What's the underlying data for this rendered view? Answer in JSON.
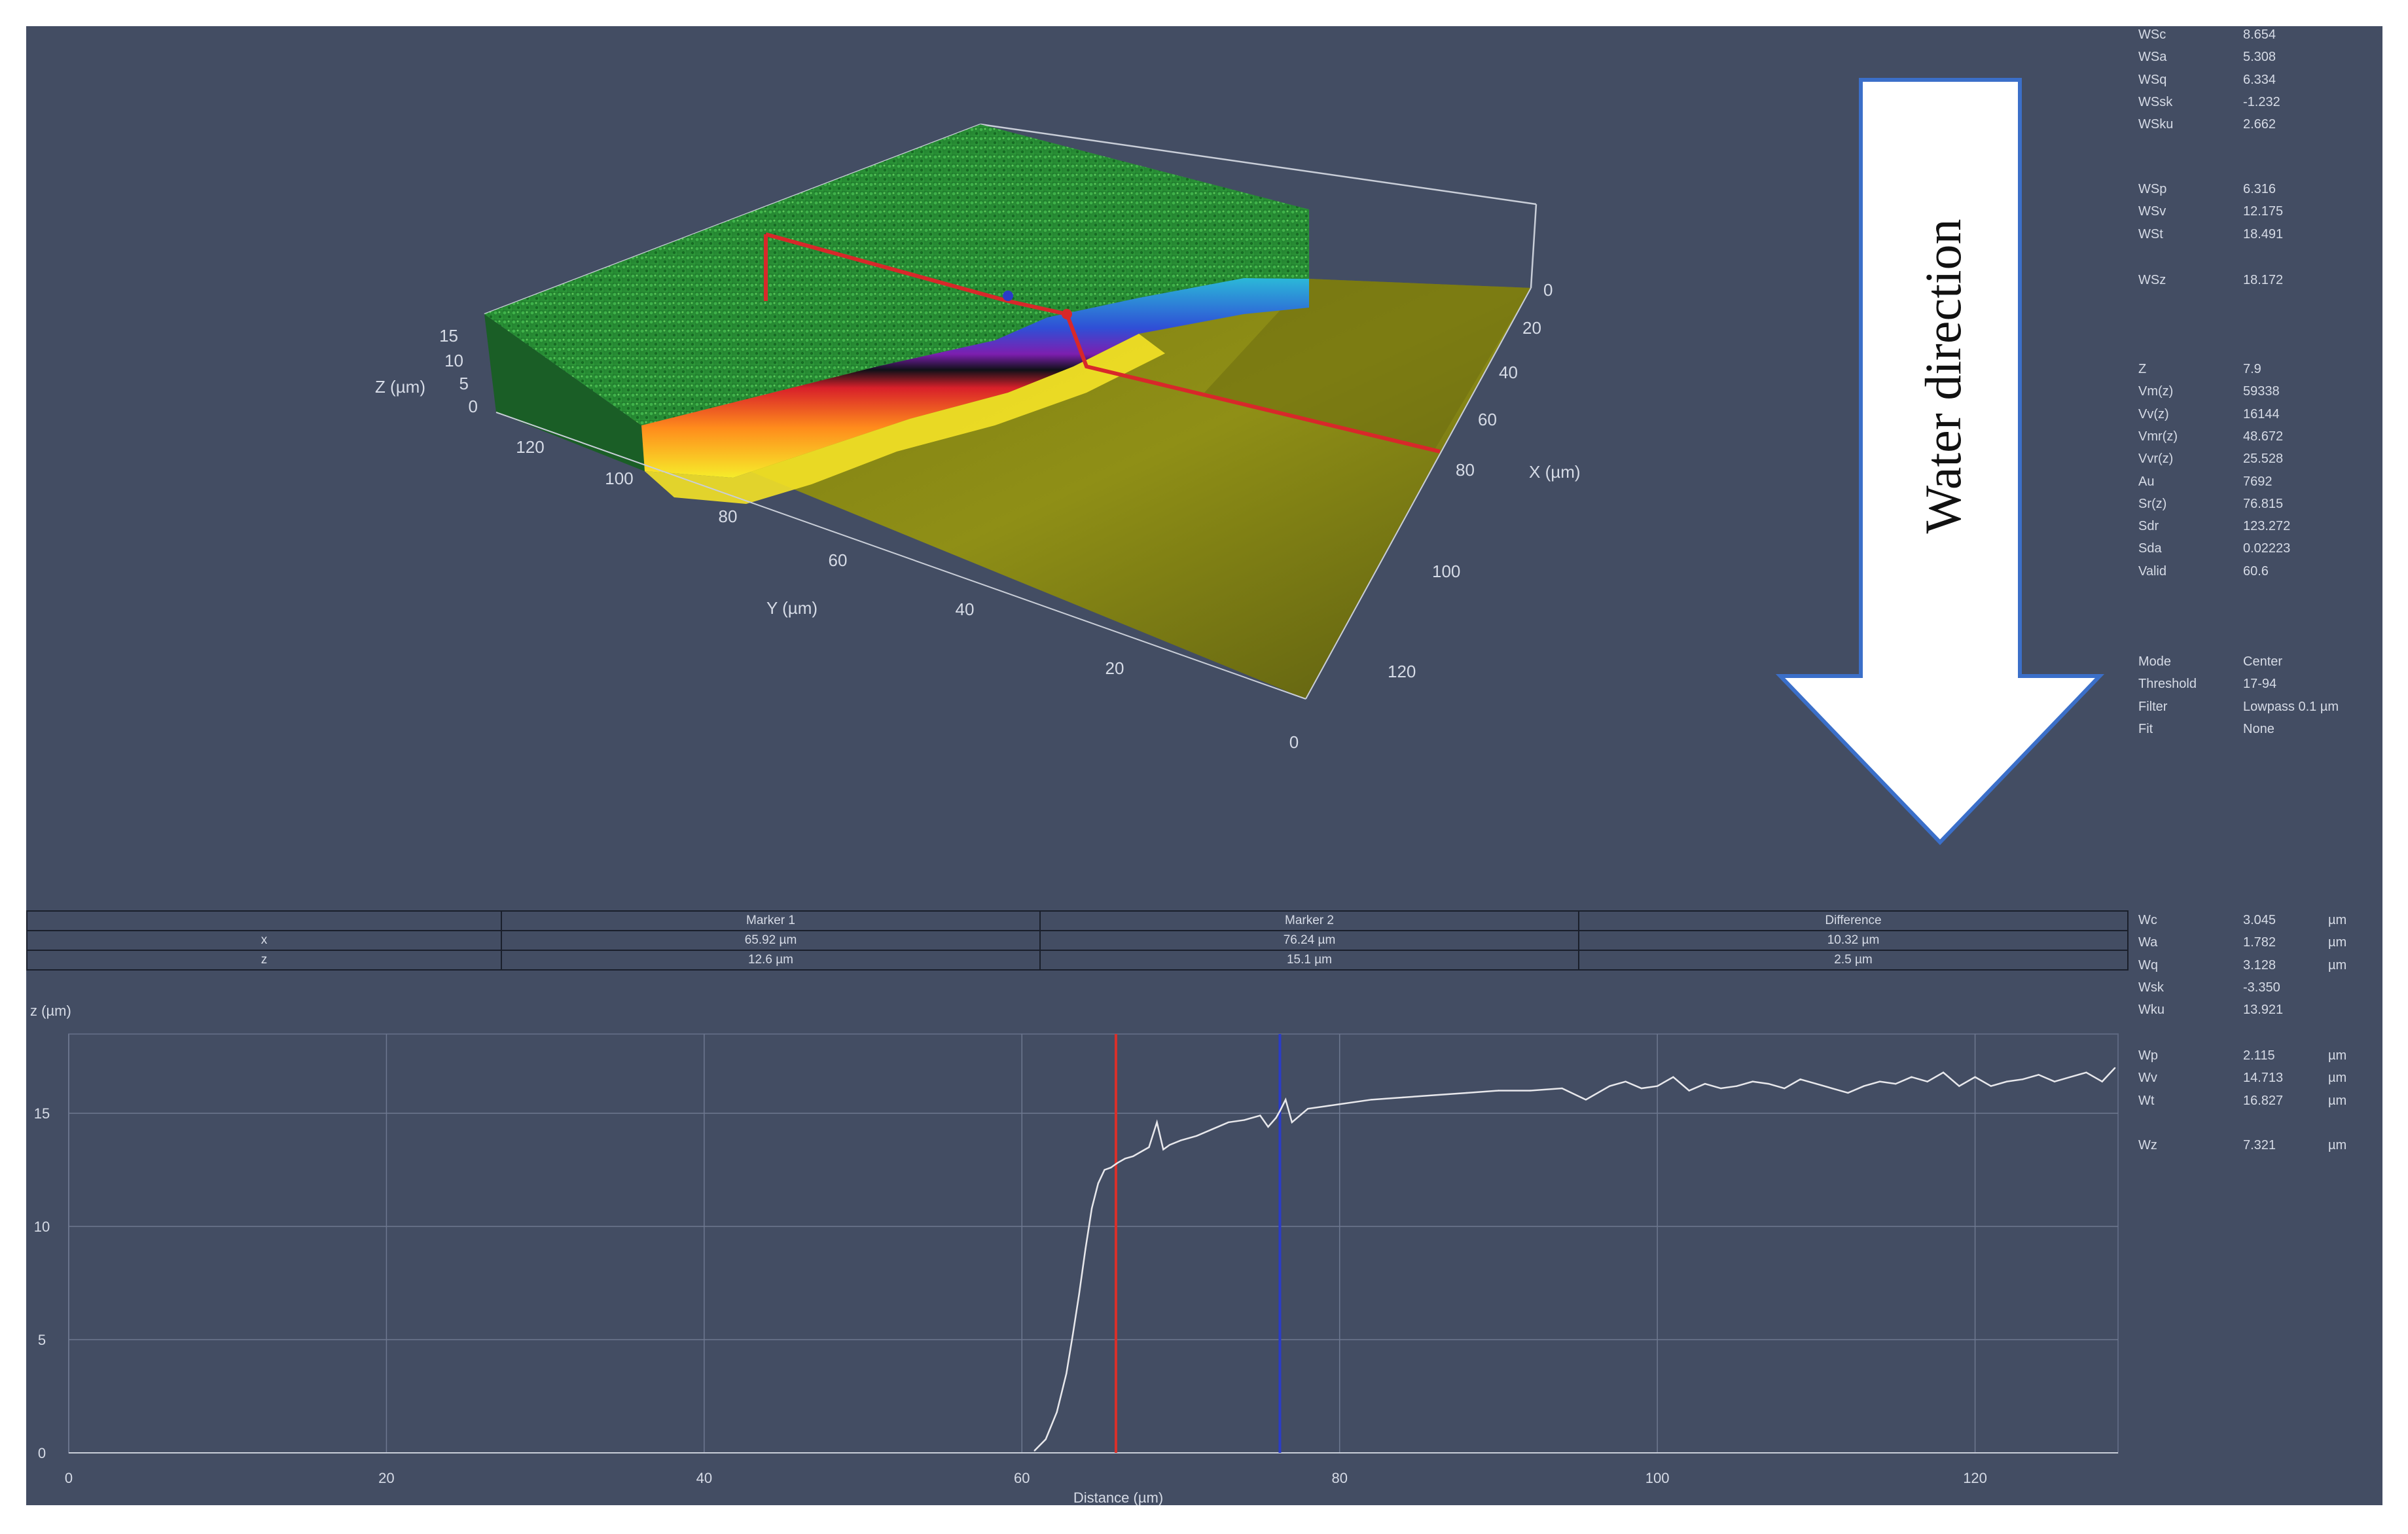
{
  "view3d": {
    "z_axis_label": "Z (µm)",
    "x_axis_label": "X (µm)",
    "y_axis_label": "Y (µm)",
    "z_ticks": [
      "15",
      "10",
      "5",
      "0"
    ],
    "x_ticks": [
      "0",
      "20",
      "40",
      "60",
      "80",
      "100",
      "120"
    ],
    "y_ticks": [
      "120",
      "100",
      "80",
      "60",
      "40",
      "20",
      "0"
    ]
  },
  "annotation": {
    "text": "Water direction",
    "arrow_color": "#ffffff",
    "border_color": "#3b6fc9"
  },
  "area_stats": {
    "group1": [
      {
        "k": "WSc",
        "v": "8.654"
      },
      {
        "k": "WSa",
        "v": "5.308"
      },
      {
        "k": "WSq",
        "v": "6.334"
      },
      {
        "k": "WSsk",
        "v": "-1.232"
      },
      {
        "k": "WSku",
        "v": "2.662"
      }
    ],
    "group2": [
      {
        "k": "WSp",
        "v": "6.316"
      },
      {
        "k": "WSv",
        "v": "12.175"
      },
      {
        "k": "WSt",
        "v": "18.491"
      }
    ],
    "group3": [
      {
        "k": "WSz",
        "v": "18.172"
      }
    ],
    "group4": [
      {
        "k": "Z",
        "v": "7.9"
      },
      {
        "k": "Vm(z)",
        "v": "59338"
      },
      {
        "k": "Vv(z)",
        "v": "16144"
      },
      {
        "k": "Vmr(z)",
        "v": "48.672"
      },
      {
        "k": "Vvr(z)",
        "v": "25.528"
      },
      {
        "k": "Au",
        "v": "7692"
      },
      {
        "k": "Sr(z)",
        "v": "76.815"
      },
      {
        "k": "Sdr",
        "v": "123.272"
      },
      {
        "k": "Sda",
        "v": "0.02223"
      },
      {
        "k": "Valid",
        "v": "60.6"
      }
    ],
    "settings": [
      {
        "k": "Mode",
        "v": "Center"
      },
      {
        "k": "Threshold",
        "v": "17-94"
      },
      {
        "k": "Filter",
        "v": "Lowpass 0.1 µm"
      },
      {
        "k": "Fit",
        "v": "None"
      }
    ]
  },
  "marker_table": {
    "headers": [
      "",
      "Marker 1",
      "Marker 2",
      "Difference"
    ],
    "rows": [
      [
        "x",
        "65.92 µm",
        "76.24 µm",
        "10.32 µm"
      ],
      [
        "z",
        "12.6 µm",
        "15.1 µm",
        "2.5 µm"
      ]
    ]
  },
  "profile_stats": {
    "group1": [
      {
        "k": "Wc",
        "v": "3.045",
        "u": "µm"
      },
      {
        "k": "Wa",
        "v": "1.782",
        "u": "µm"
      },
      {
        "k": "Wq",
        "v": "3.128",
        "u": "µm"
      },
      {
        "k": "Wsk",
        "v": "-3.350",
        "u": ""
      },
      {
        "k": "Wku",
        "v": "13.921",
        "u": ""
      }
    ],
    "group2": [
      {
        "k": "Wp",
        "v": "2.115",
        "u": "µm"
      },
      {
        "k": "Wv",
        "v": "14.713",
        "u": "µm"
      },
      {
        "k": "Wt",
        "v": "16.827",
        "u": "µm"
      }
    ],
    "group3": [
      {
        "k": "Wz",
        "v": "7.321",
        "u": "µm"
      }
    ]
  },
  "chart_data": {
    "type": "line",
    "title": "",
    "xlabel": "Distance (µm)",
    "ylabel": "z (µm)",
    "xlim": [
      0,
      129
    ],
    "ylim": [
      0,
      18.5
    ],
    "x_ticks": [
      0,
      20,
      40,
      60,
      80,
      100,
      120
    ],
    "y_ticks": [
      0,
      5,
      10,
      15
    ],
    "grid": true,
    "line_color": "#e8e8ec",
    "markers": [
      {
        "name": "Marker 1",
        "x": 65.92,
        "color": "#d8302b"
      },
      {
        "name": "Marker 2",
        "x": 76.24,
        "color": "#2a3cc8"
      }
    ],
    "series": [
      {
        "x": [
          60.8,
          61.5,
          62.2,
          62.8,
          63.2,
          63.6,
          64.0,
          64.4,
          64.8,
          65.2,
          65.6,
          66.0,
          66.5,
          67.0,
          67.5,
          68.0,
          68.5,
          68.9,
          69.3,
          70.0,
          71.0,
          72.0,
          73.0,
          74.0,
          75.0,
          75.5,
          76.0,
          76.24,
          76.6,
          77.0,
          78.0,
          79.0,
          80.0,
          82.0,
          84.0,
          86.0,
          88.0,
          90.0,
          92.0,
          94.0,
          95.5,
          97.0,
          98.0,
          99.0,
          100.0,
          101.0,
          102.0,
          103.0,
          104.0,
          105.0,
          106.0,
          107.0,
          108.0,
          109.0,
          110.0,
          111.0,
          112.0,
          113.0,
          114.0,
          115.0,
          116.0,
          117.0,
          118.0,
          119.0,
          120.0,
          121.0,
          122.0,
          123.0,
          124.0,
          125.0,
          126.0,
          127.0,
          128.0,
          128.8
        ],
        "y": [
          0.1,
          0.6,
          1.8,
          3.5,
          5.2,
          7.0,
          9.0,
          10.8,
          11.9,
          12.5,
          12.6,
          12.8,
          13.0,
          13.1,
          13.3,
          13.5,
          14.6,
          13.4,
          13.6,
          13.8,
          14.0,
          14.3,
          14.6,
          14.7,
          14.9,
          14.4,
          14.8,
          15.1,
          15.6,
          14.6,
          15.2,
          15.3,
          15.4,
          15.6,
          15.7,
          15.8,
          15.9,
          16.0,
          16.0,
          16.1,
          15.6,
          16.2,
          16.4,
          16.1,
          16.2,
          16.6,
          16.0,
          16.3,
          16.1,
          16.2,
          16.4,
          16.3,
          16.1,
          16.5,
          16.3,
          16.1,
          15.9,
          16.2,
          16.4,
          16.3,
          16.6,
          16.4,
          16.8,
          16.2,
          16.6,
          16.2,
          16.4,
          16.5,
          16.7,
          16.4,
          16.6,
          16.8,
          16.4,
          17.0
        ]
      }
    ]
  }
}
